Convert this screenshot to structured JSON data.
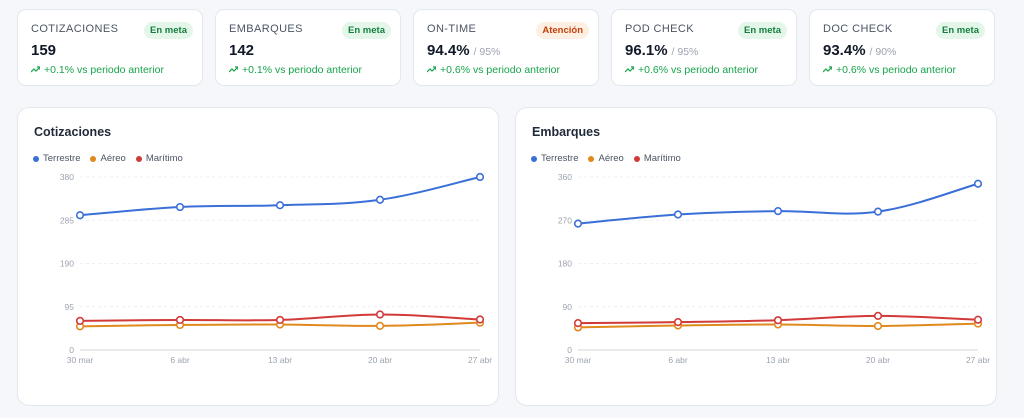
{
  "kpis": [
    {
      "title": "COTIZACIONES",
      "badge": "En meta",
      "badge_type": "ok",
      "value": "159",
      "target": "",
      "delta": "+0.1% vs periodo anterior"
    },
    {
      "title": "EMBARQUES",
      "badge": "En meta",
      "badge_type": "ok",
      "value": "142",
      "target": "",
      "delta": "+0.1% vs periodo anterior"
    },
    {
      "title": "ON-TIME",
      "badge": "Atención",
      "badge_type": "warn",
      "value": "94.4%",
      "target": "/ 95%",
      "delta": "+0.6% vs periodo anterior"
    },
    {
      "title": "POD CHECK",
      "badge": "En meta",
      "badge_type": "ok",
      "value": "96.1%",
      "target": "/ 95%",
      "delta": "+0.6% vs periodo anterior"
    },
    {
      "title": "DOC CHECK",
      "badge": "En meta",
      "badge_type": "ok",
      "value": "93.4%",
      "target": "/ 90%",
      "delta": "+0.6% vs periodo anterior"
    }
  ],
  "colors": {
    "terrestre": "#3b6fd8",
    "aereo": "#e08a1e",
    "maritimo": "#d23a3a",
    "ok": "#16a34a",
    "warn": "#c2410c"
  },
  "chart_data": [
    {
      "type": "line",
      "title": "Cotizaciones",
      "categories": [
        "30 mar",
        "6 abr",
        "13 abr",
        "20 abr",
        "27 abr"
      ],
      "y_ticks": [
        0,
        95,
        190,
        285,
        380
      ],
      "ylim": [
        0,
        380
      ],
      "legend": "top-left",
      "series": [
        {
          "name": "Terrestre",
          "color_key": "terrestre",
          "values": [
            296,
            314,
            318,
            330,
            380
          ]
        },
        {
          "name": "Aéreo",
          "color_key": "aereo",
          "values": [
            52,
            55,
            56,
            53,
            60
          ]
        },
        {
          "name": "Marítimo",
          "color_key": "maritimo",
          "values": [
            64,
            66,
            66,
            78,
            67
          ]
        }
      ]
    },
    {
      "type": "line",
      "title": "Embarques",
      "categories": [
        "30 mar",
        "6 abr",
        "13 abr",
        "20 abr",
        "27 abr"
      ],
      "y_ticks": [
        0,
        90,
        180,
        270,
        360
      ],
      "ylim": [
        0,
        360
      ],
      "legend": "top-left",
      "series": [
        {
          "name": "Terrestre",
          "color_key": "terrestre",
          "values": [
            263,
            282,
            289,
            288,
            346
          ]
        },
        {
          "name": "Aéreo",
          "color_key": "aereo",
          "values": [
            47,
            51,
            53,
            50,
            55
          ]
        },
        {
          "name": "Marítimo",
          "color_key": "maritimo",
          "values": [
            56,
            58,
            62,
            71,
            63
          ]
        }
      ]
    }
  ]
}
